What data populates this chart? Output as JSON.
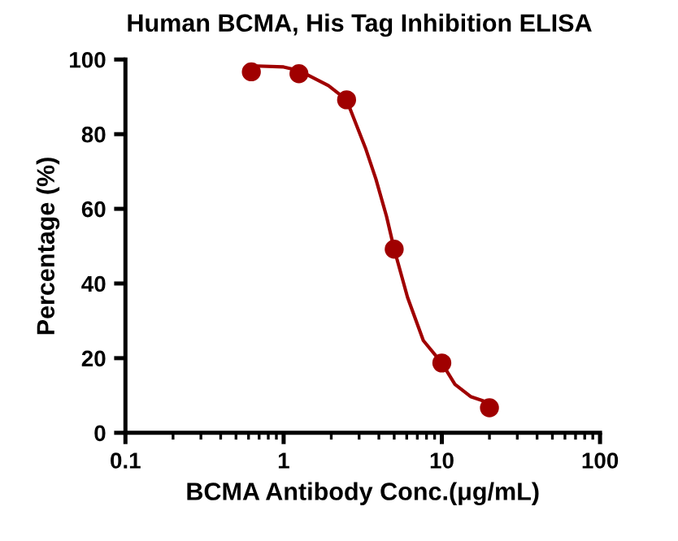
{
  "chart_data": {
    "type": "scatter",
    "title": "Human BCMA, His Tag Inhibition ELISA",
    "xlabel": "BCMA Antibody Conc.(μg/mL)",
    "ylabel": "Percentage (%)",
    "log": "x",
    "xlim": [
      0.1,
      100
    ],
    "xticks": [
      0.1,
      1,
      10,
      100
    ],
    "ylim": [
      0,
      100
    ],
    "yticks": [
      0,
      20,
      40,
      60,
      80,
      100
    ],
    "grid": false,
    "legend": false,
    "series": [
      {
        "color": "#a00000",
        "marker": "circle",
        "x": [
          0.625,
          1.25,
          2.5,
          5,
          10,
          20
        ],
        "values": [
          96.7,
          96.2,
          89.2,
          49.2,
          18.7,
          6.7
        ]
      },
      {
        "type": "line",
        "color": "#a00000",
        "line_style": "solid",
        "x": [
          0.63,
          1,
          1.26,
          1.92,
          2.5,
          3.29,
          3.83,
          4.47,
          5,
          6.07,
          7.64,
          10,
          12.1,
          15.2,
          20
        ],
        "values": [
          98.3,
          98,
          97,
          93,
          89.2,
          76.3,
          68,
          58,
          49.2,
          36.3,
          24.7,
          18.7,
          13,
          9.7,
          8
        ]
      }
    ]
  }
}
